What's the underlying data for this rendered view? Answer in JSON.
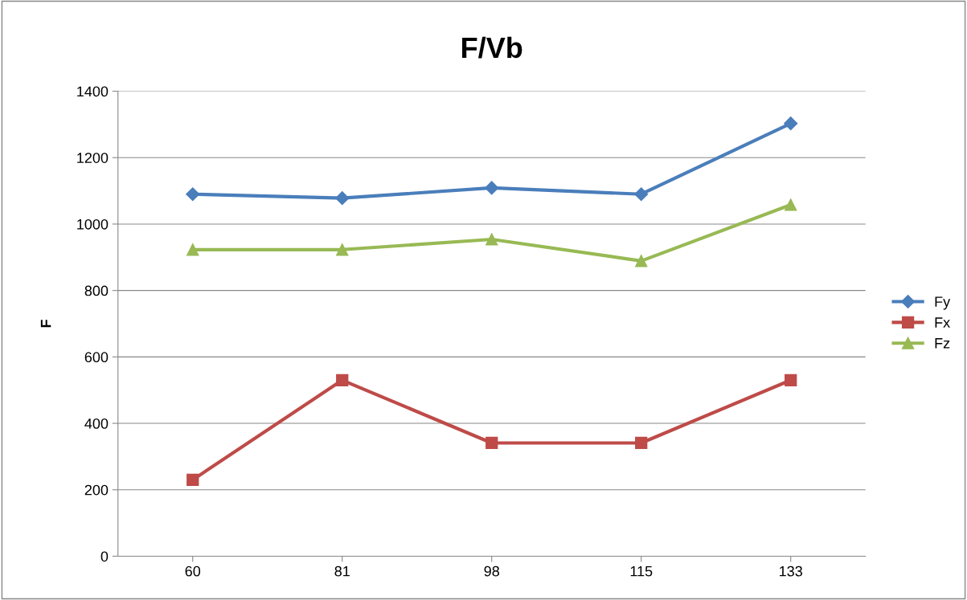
{
  "chart_data": {
    "type": "line",
    "title": "F/Vb",
    "ylabel": "F",
    "categories": [
      "60",
      "81",
      "98",
      "115",
      "133"
    ],
    "series": [
      {
        "name": "Fy",
        "color": "#4a7ebb",
        "marker": "diamond",
        "values": [
          1090,
          1078,
          1109,
          1090,
          1303
        ]
      },
      {
        "name": "Fx",
        "color": "#be4b48",
        "marker": "square",
        "values": [
          230,
          530,
          341,
          341,
          530
        ]
      },
      {
        "name": "Fz",
        "color": "#98b954",
        "marker": "triangle",
        "values": [
          923,
          923,
          954,
          889,
          1058
        ]
      }
    ],
    "ylim": [
      0,
      1400
    ],
    "yticks": [
      0,
      200,
      400,
      600,
      800,
      1000,
      1200,
      1400
    ],
    "grid": "y",
    "legend": "right"
  }
}
